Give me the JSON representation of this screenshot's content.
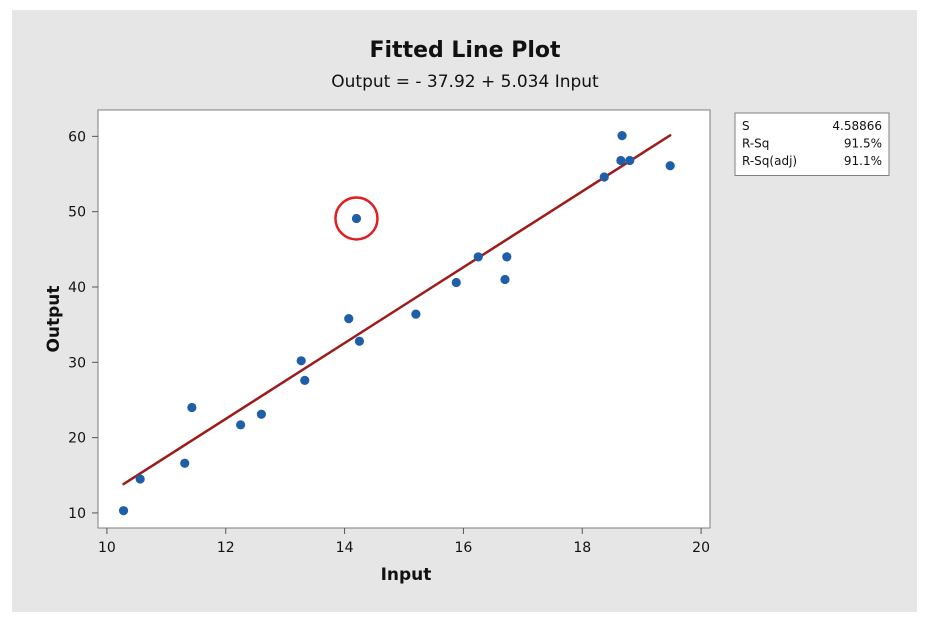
{
  "chart_data": {
    "type": "scatter",
    "title": "Fitted Line Plot",
    "subtitle": "Output = - 37.92 + 5.034 Input",
    "xlabel": "Input",
    "ylabel": "Output",
    "xlim": [
      9.85,
      20.15
    ],
    "ylim": [
      8.0,
      63.5
    ],
    "xticks": [
      10,
      12,
      14,
      16,
      18,
      20
    ],
    "yticks": [
      10,
      20,
      30,
      40,
      50,
      60
    ],
    "grid": false,
    "points": {
      "x": [
        10.28,
        10.56,
        11.31,
        11.43,
        12.25,
        12.6,
        13.27,
        13.33,
        14.07,
        14.2,
        14.25,
        15.2,
        15.88,
        16.25,
        16.7,
        16.73,
        18.37,
        18.65,
        18.67,
        18.8,
        19.48
      ],
      "y": [
        10.3,
        14.5,
        16.6,
        24.0,
        21.7,
        23.1,
        30.2,
        27.6,
        35.8,
        49.1,
        32.8,
        36.4,
        40.6,
        44.0,
        41.0,
        44.0,
        54.6,
        56.8,
        60.1,
        56.8,
        56.1
      ]
    },
    "fit_line": {
      "intercept": -37.92,
      "slope": 5.034,
      "x_range": [
        10.28,
        19.48
      ],
      "color": "#9e1b1b"
    },
    "point_color": "#1f5fa8",
    "highlight": {
      "x": 14.2,
      "y": 49.1,
      "color": "#e02020"
    },
    "stats_legend": {
      "placement": "top-right",
      "rows": [
        {
          "label": "S",
          "value": "4.58866"
        },
        {
          "label": "R-Sq",
          "value": "91.5%"
        },
        {
          "label": "R-Sq(adj)",
          "value": "91.1%"
        }
      ]
    },
    "background": "#e6e6e6",
    "plot_background": "#ffffff"
  }
}
